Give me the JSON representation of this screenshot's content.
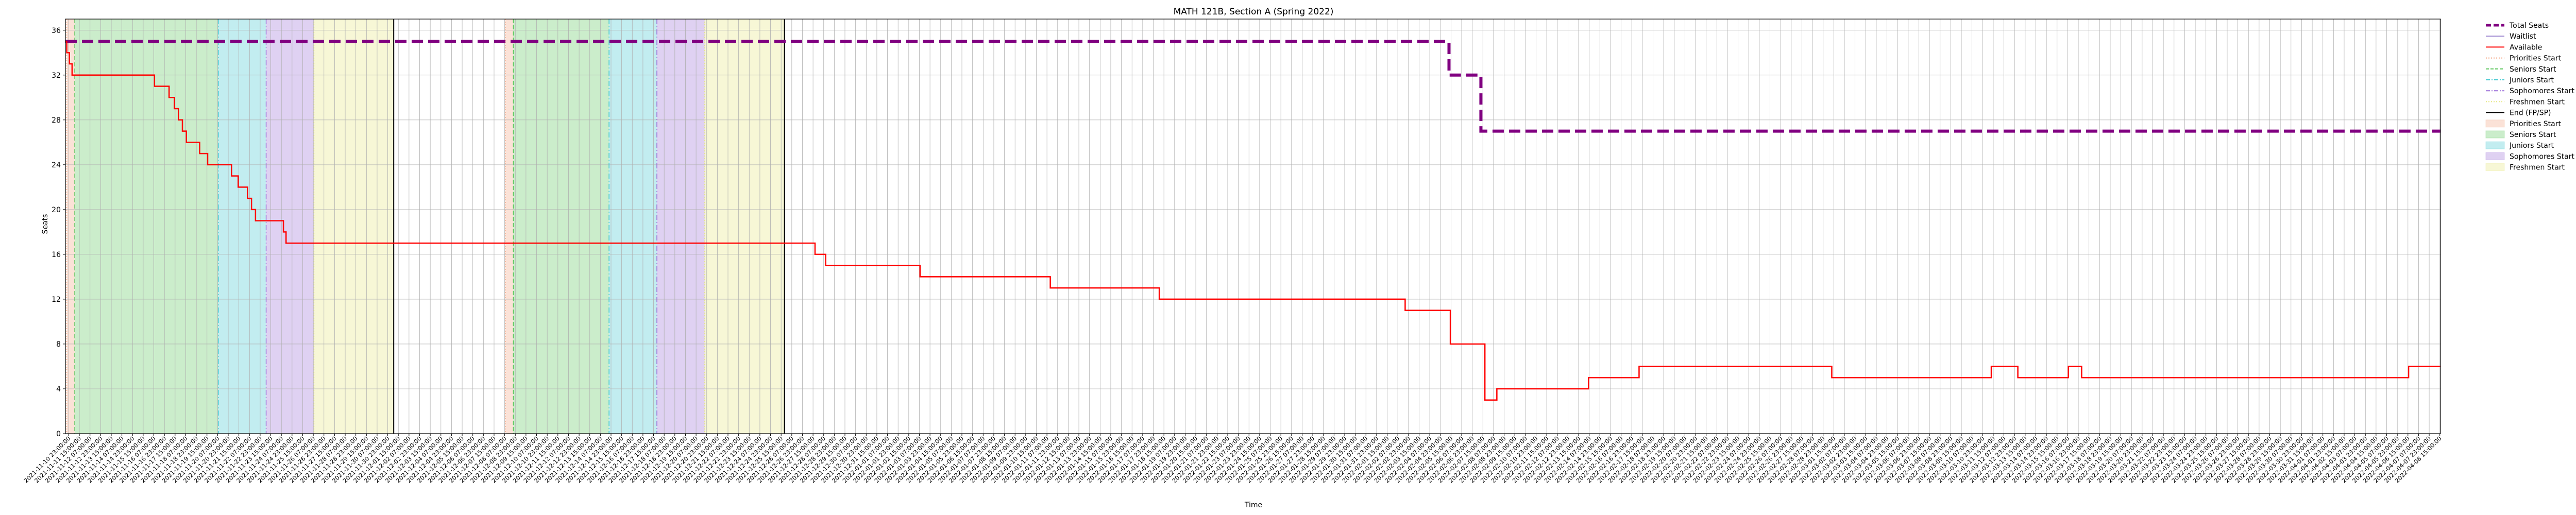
{
  "chart_data": {
    "type": "line",
    "title": "MATH 121B, Section A (Spring 2022)",
    "xlabel": "Time",
    "ylabel": "Seats",
    "ylim": [
      0,
      37
    ],
    "yticks": [
      0,
      4,
      8,
      12,
      16,
      20,
      24,
      28,
      32,
      36
    ],
    "xlim": [
      "2021-11-10 18:00",
      "2022-04-08 16:00"
    ],
    "xtick_start": "2021-11-10 23:00",
    "xtick_step_hours": 16,
    "grid": true,
    "legend_position": "outside-right",
    "colors": {
      "total": "#800080",
      "waitlist": "#a08cd2",
      "available": "#ff0000",
      "priorities": "#f4a582",
      "seniors": "#5cc65c",
      "juniors": "#40c8d0",
      "sophomores": "#9a6fd8",
      "freshmen": "#e6e680",
      "end": "#000000"
    },
    "series": [
      {
        "name": "Total Seats",
        "key": "total",
        "points": [
          [
            "2021-11-10 18:00",
            35
          ],
          [
            "2022-02-05 12:00",
            35
          ],
          [
            "2022-02-05 12:00",
            32
          ],
          [
            "2022-02-07 12:00",
            32
          ],
          [
            "2022-02-07 12:00",
            27
          ],
          [
            "2022-04-08 16:00",
            27
          ]
        ]
      },
      {
        "name": "Available",
        "key": "available",
        "points": [
          [
            "2021-11-10 18:00",
            35
          ],
          [
            "2021-11-10 20:00",
            35
          ],
          [
            "2021-11-10 20:00",
            34
          ],
          [
            "2021-11-11 00:00",
            34
          ],
          [
            "2021-11-11 00:00",
            33
          ],
          [
            "2021-11-11 04:00",
            33
          ],
          [
            "2021-11-11 04:00",
            32
          ],
          [
            "2021-11-16 08:00",
            32
          ],
          [
            "2021-11-16 08:00",
            31
          ],
          [
            "2021-11-17 06:00",
            31
          ],
          [
            "2021-11-17 06:00",
            30
          ],
          [
            "2021-11-17 14:00",
            30
          ],
          [
            "2021-11-17 14:00",
            29
          ],
          [
            "2021-11-17 20:00",
            29
          ],
          [
            "2021-11-17 20:00",
            28
          ],
          [
            "2021-11-18 02:00",
            28
          ],
          [
            "2021-11-18 02:00",
            27
          ],
          [
            "2021-11-18 08:00",
            27
          ],
          [
            "2021-11-18 08:00",
            26
          ],
          [
            "2021-11-19 04:00",
            26
          ],
          [
            "2021-11-19 04:00",
            25
          ],
          [
            "2021-11-19 16:00",
            25
          ],
          [
            "2021-11-19 16:00",
            24
          ],
          [
            "2021-11-21 04:00",
            24
          ],
          [
            "2021-11-21 04:00",
            23
          ],
          [
            "2021-11-21 14:00",
            23
          ],
          [
            "2021-11-21 14:00",
            22
          ],
          [
            "2021-11-22 04:00",
            22
          ],
          [
            "2021-11-22 04:00",
            21
          ],
          [
            "2021-11-22 10:00",
            21
          ],
          [
            "2021-11-22 10:00",
            20
          ],
          [
            "2021-11-22 16:00",
            20
          ],
          [
            "2021-11-22 16:00",
            19
          ],
          [
            "2021-11-24 10:00",
            19
          ],
          [
            "2021-11-24 10:00",
            18
          ],
          [
            "2021-11-24 14:00",
            18
          ],
          [
            "2021-11-24 14:00",
            17
          ],
          [
            "2021-12-27 18:00",
            17
          ],
          [
            "2021-12-27 18:00",
            16
          ],
          [
            "2021-12-28 10:00",
            16
          ],
          [
            "2021-12-28 10:00",
            15
          ],
          [
            "2022-01-03 08:00",
            15
          ],
          [
            "2022-01-03 08:00",
            14
          ],
          [
            "2022-01-11 12:00",
            14
          ],
          [
            "2022-01-11 12:00",
            13
          ],
          [
            "2022-01-18 08:00",
            13
          ],
          [
            "2022-01-18 08:00",
            12
          ],
          [
            "2022-02-02 18:00",
            12
          ],
          [
            "2022-02-02 18:00",
            11
          ],
          [
            "2022-02-05 14:00",
            11
          ],
          [
            "2022-02-05 14:00",
            8
          ],
          [
            "2022-02-07 18:00",
            8
          ],
          [
            "2022-02-07 18:00",
            3
          ],
          [
            "2022-02-08 12:00",
            3
          ],
          [
            "2022-02-08 12:00",
            4
          ],
          [
            "2022-02-14 06:00",
            4
          ],
          [
            "2022-02-14 06:00",
            5
          ],
          [
            "2022-02-17 10:00",
            5
          ],
          [
            "2022-02-17 10:00",
            6
          ],
          [
            "2022-03-01 12:00",
            6
          ],
          [
            "2022-03-01 12:00",
            5
          ],
          [
            "2022-03-11 12:00",
            5
          ],
          [
            "2022-03-11 12:00",
            6
          ],
          [
            "2022-03-13 04:00",
            6
          ],
          [
            "2022-03-13 04:00",
            5
          ],
          [
            "2022-03-16 08:00",
            5
          ],
          [
            "2022-03-16 08:00",
            6
          ],
          [
            "2022-03-17 04:00",
            6
          ],
          [
            "2022-03-17 04:00",
            5
          ],
          [
            "2022-04-06 16:00",
            5
          ],
          [
            "2022-04-06 16:00",
            6
          ],
          [
            "2022-04-08 16:00",
            6
          ]
        ]
      }
    ],
    "phases": [
      {
        "key": "priorities",
        "start": "2021-11-10 20:00",
        "end": "2021-11-11 08:00"
      },
      {
        "key": "seniors",
        "start": "2021-11-11 08:00",
        "end": "2021-11-20 08:00"
      },
      {
        "key": "juniors",
        "start": "2021-11-20 08:00",
        "end": "2021-11-23 08:00"
      },
      {
        "key": "sophomores",
        "start": "2021-11-23 08:00",
        "end": "2021-11-26 08:00"
      },
      {
        "key": "freshmen",
        "start": "2021-11-26 08:00",
        "end": "2021-12-01 08:00"
      },
      {
        "key": "end",
        "at": "2021-12-01 08:00"
      },
      {
        "key": "priorities",
        "start": "2021-12-08 08:00",
        "end": "2021-12-08 20:00"
      },
      {
        "key": "seniors",
        "start": "2021-12-08 20:00",
        "end": "2021-12-14 20:00"
      },
      {
        "key": "juniors",
        "start": "2021-12-14 20:00",
        "end": "2021-12-17 20:00"
      },
      {
        "key": "sophomores",
        "start": "2021-12-17 20:00",
        "end": "2021-12-20 20:00"
      },
      {
        "key": "freshmen",
        "start": "2021-12-20 20:00",
        "end": "2021-12-25 20:00"
      },
      {
        "key": "end",
        "at": "2021-12-25 20:00"
      }
    ],
    "legend": [
      {
        "label": "Total Seats",
        "key": "total",
        "style": "thick-dash"
      },
      {
        "label": "Waitlist",
        "key": "waitlist",
        "style": "line"
      },
      {
        "label": "Available",
        "key": "available",
        "style": "line"
      },
      {
        "label": "Priorities Start",
        "key": "priorities",
        "style": "dotted"
      },
      {
        "label": "Seniors Start",
        "key": "seniors",
        "style": "dashed"
      },
      {
        "label": "Juniors Start",
        "key": "juniors",
        "style": "dashdot"
      },
      {
        "label": "Sophomores Start",
        "key": "sophomores",
        "style": "dashdot"
      },
      {
        "label": "Freshmen Start",
        "key": "freshmen",
        "style": "dotted"
      },
      {
        "label": "End (FP/SP)",
        "key": "end",
        "style": "line"
      },
      {
        "label": "Priorities Start",
        "key": "priorities",
        "style": "patch"
      },
      {
        "label": "Seniors Start",
        "key": "seniors",
        "style": "patch"
      },
      {
        "label": "Juniors Start",
        "key": "juniors",
        "style": "patch"
      },
      {
        "label": "Sophomores Start",
        "key": "sophomores",
        "style": "patch"
      },
      {
        "label": "Freshmen Start",
        "key": "freshmen",
        "style": "patch"
      }
    ]
  }
}
